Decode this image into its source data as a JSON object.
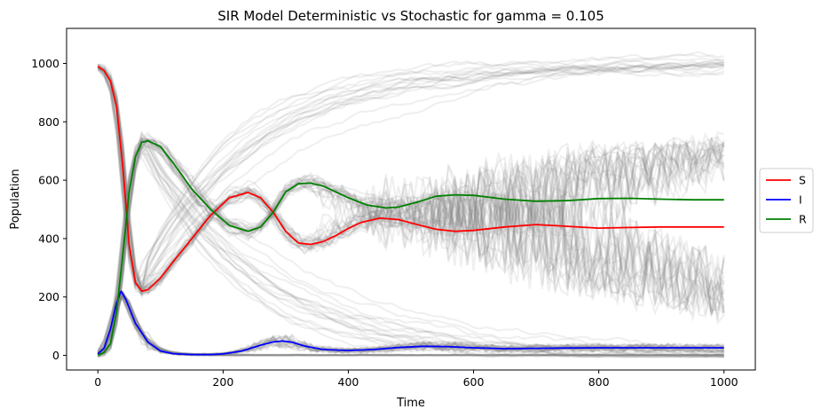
{
  "chart_data": {
    "type": "line",
    "title": "SIR Model Deterministic vs Stochastic for gamma = 0.105",
    "xlabel": "Time",
    "ylabel": "Population",
    "xlim": [
      -50,
      1050
    ],
    "ylim": [
      -50,
      1120
    ],
    "x_ticks": [
      0,
      200,
      400,
      600,
      800,
      1000
    ],
    "y_ticks": [
      0,
      200,
      400,
      600,
      800,
      1000
    ],
    "grid": false,
    "legend_position": "right",
    "series": [
      {
        "name": "S",
        "color": "#ff0000",
        "x": [
          0,
          10,
          20,
          30,
          40,
          50,
          60,
          70,
          80,
          100,
          120,
          150,
          180,
          210,
          240,
          260,
          280,
          300,
          320,
          340,
          360,
          380,
          400,
          420,
          450,
          480,
          510,
          540,
          570,
          600,
          650,
          700,
          750,
          800,
          850,
          900,
          950,
          1000
        ],
        "y": [
          990,
          975,
          940,
          850,
          640,
          380,
          250,
          220,
          225,
          265,
          320,
          400,
          480,
          540,
          558,
          540,
          490,
          425,
          385,
          380,
          390,
          410,
          435,
          455,
          470,
          465,
          448,
          432,
          425,
          428,
          440,
          448,
          442,
          436,
          438,
          440,
          440,
          440
        ]
      },
      {
        "name": "I",
        "color": "#0000ff",
        "x": [
          0,
          10,
          20,
          30,
          37,
          45,
          60,
          80,
          100,
          120,
          150,
          180,
          200,
          230,
          260,
          280,
          295,
          310,
          330,
          360,
          400,
          440,
          480,
          520,
          560,
          600,
          650,
          700,
          800,
          900,
          1000
        ],
        "y": [
          5,
          25,
          90,
          180,
          220,
          190,
          110,
          45,
          15,
          6,
          3,
          3,
          5,
          15,
          35,
          46,
          49,
          45,
          32,
          20,
          17,
          20,
          27,
          31,
          30,
          26,
          23,
          24,
          26,
          26,
          26
        ]
      },
      {
        "name": "R",
        "color": "#008000",
        "x": [
          0,
          10,
          20,
          30,
          40,
          50,
          60,
          70,
          80,
          100,
          120,
          150,
          180,
          210,
          240,
          260,
          280,
          300,
          320,
          340,
          360,
          380,
          400,
          430,
          460,
          480,
          510,
          540,
          570,
          600,
          650,
          700,
          750,
          800,
          850,
          900,
          950,
          1000
        ],
        "y": [
          0,
          10,
          40,
          150,
          350,
          560,
          680,
          730,
          735,
          715,
          660,
          570,
          500,
          445,
          425,
          440,
          490,
          560,
          588,
          590,
          580,
          560,
          540,
          515,
          505,
          508,
          525,
          545,
          550,
          548,
          535,
          528,
          530,
          537,
          538,
          535,
          533,
          533
        ]
      }
    ],
    "background_traces": {
      "color": "#808080",
      "note_count": 40
    }
  }
}
